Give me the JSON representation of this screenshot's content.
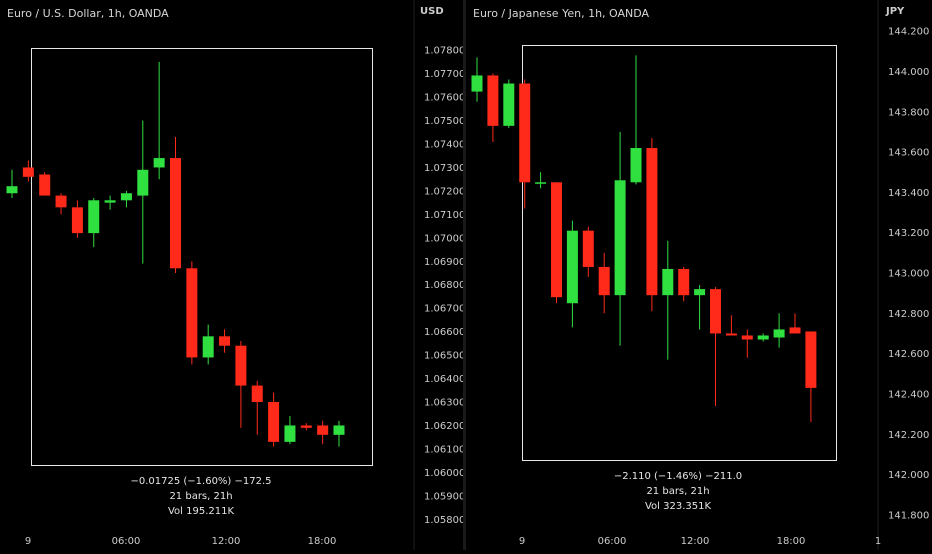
{
  "chart_data": [
    {
      "type": "candlestick",
      "title": "Euro / U.S. Dollar, 1h, OANDA",
      "currency": "USD",
      "ylim": [
        1.0575,
        1.0795
      ],
      "y_ticks": [
        "1.07800",
        "1.07700",
        "1.07600",
        "1.07500",
        "1.07400",
        "1.07300",
        "1.07200",
        "1.07100",
        "1.07000",
        "1.06900",
        "1.06800",
        "1.06700",
        "1.06600",
        "1.06500",
        "1.06400",
        "1.06300",
        "1.06200",
        "1.06100",
        "1.06000",
        "1.05900",
        "1.05800"
      ],
      "x_ticks": [
        "9",
        "06:00",
        "12:00",
        "18:00"
      ],
      "measure": {
        "change": "−0.01725 (−1.60%) −172.5",
        "bars": "21 bars, 21h",
        "volume": "Vol 195.211K"
      },
      "candles": [
        {
          "o": 1.0719,
          "h": 1.0729,
          "l": 1.0717,
          "c": 1.0722
        },
        {
          "o": 1.073,
          "h": 1.0733,
          "l": 1.0724,
          "c": 1.0726
        },
        {
          "o": 1.0727,
          "h": 1.0728,
          "l": 1.072,
          "c": 1.0718
        },
        {
          "o": 1.0718,
          "h": 1.0719,
          "l": 1.071,
          "c": 1.0713
        },
        {
          "o": 1.0713,
          "h": 1.0716,
          "l": 1.07,
          "c": 1.0702
        },
        {
          "o": 1.0702,
          "h": 1.0717,
          "l": 1.0696,
          "c": 1.0716
        },
        {
          "o": 1.0715,
          "h": 1.0718,
          "l": 1.0712,
          "c": 1.0716
        },
        {
          "o": 1.0716,
          "h": 1.072,
          "l": 1.0713,
          "c": 1.0719
        },
        {
          "o": 1.0718,
          "h": 1.075,
          "l": 1.0689,
          "c": 1.0729
        },
        {
          "o": 1.073,
          "h": 1.0775,
          "l": 1.0725,
          "c": 1.0734
        },
        {
          "o": 1.0734,
          "h": 1.0743,
          "l": 1.0685,
          "c": 1.0687
        },
        {
          "o": 1.0687,
          "h": 1.069,
          "l": 1.0646,
          "c": 1.0649
        },
        {
          "o": 1.0649,
          "h": 1.0663,
          "l": 1.0646,
          "c": 1.0658
        },
        {
          "o": 1.0658,
          "h": 1.0661,
          "l": 1.0651,
          "c": 1.0654
        },
        {
          "o": 1.0654,
          "h": 1.0656,
          "l": 1.0619,
          "c": 1.0637
        },
        {
          "o": 1.0637,
          "h": 1.0639,
          "l": 1.0616,
          "c": 1.063
        },
        {
          "o": 1.063,
          "h": 1.0634,
          "l": 1.0611,
          "c": 1.0613
        },
        {
          "o": 1.0613,
          "h": 1.0624,
          "l": 1.0612,
          "c": 1.062
        },
        {
          "o": 1.062,
          "h": 1.0621,
          "l": 1.0618,
          "c": 1.0619
        },
        {
          "o": 1.062,
          "h": 1.0622,
          "l": 1.0612,
          "c": 1.0616
        },
        {
          "o": 1.0616,
          "h": 1.0622,
          "l": 1.0611,
          "c": 1.062
        }
      ]
    },
    {
      "type": "candlestick",
      "title": "Euro / Japanese Yen, 1h, OANDA",
      "currency": "JPY",
      "ylim": [
        141.72,
        144.28
      ],
      "y_ticks": [
        "144.200",
        "144.000",
        "143.800",
        "143.600",
        "143.400",
        "143.200",
        "143.000",
        "142.800",
        "142.600",
        "142.400",
        "142.200",
        "142.000",
        "141.800"
      ],
      "x_ticks": [
        "9",
        "06:00",
        "12:00",
        "18:00",
        "1"
      ],
      "measure": {
        "change": "−2.110 (−1.46%) −211.0",
        "bars": "21 bars, 21h",
        "volume": "Vol 323.351K"
      },
      "candles": [
        {
          "o": 143.9,
          "h": 144.07,
          "l": 143.85,
          "c": 143.98
        },
        {
          "o": 143.98,
          "h": 143.99,
          "l": 143.65,
          "c": 143.73
        },
        {
          "o": 143.73,
          "h": 143.96,
          "l": 143.72,
          "c": 143.94
        },
        {
          "o": 143.94,
          "h": 143.96,
          "l": 143.32,
          "c": 143.45
        },
        {
          "o": 143.45,
          "h": 143.5,
          "l": 143.42,
          "c": 143.45
        },
        {
          "o": 143.45,
          "h": 143.45,
          "l": 142.85,
          "c": 142.88
        },
        {
          "o": 142.85,
          "h": 143.26,
          "l": 142.73,
          "c": 143.21
        },
        {
          "o": 143.21,
          "h": 143.23,
          "l": 142.98,
          "c": 143.03
        },
        {
          "o": 143.03,
          "h": 143.1,
          "l": 142.8,
          "c": 142.89
        },
        {
          "o": 142.89,
          "h": 143.7,
          "l": 142.64,
          "c": 143.46
        },
        {
          "o": 143.45,
          "h": 144.08,
          "l": 143.44,
          "c": 143.62
        },
        {
          "o": 143.62,
          "h": 143.67,
          "l": 142.81,
          "c": 142.89
        },
        {
          "o": 142.89,
          "h": 143.16,
          "l": 142.57,
          "c": 143.02
        },
        {
          "o": 143.02,
          "h": 143.03,
          "l": 142.86,
          "c": 142.89
        },
        {
          "o": 142.89,
          "h": 142.94,
          "l": 142.72,
          "c": 142.92
        },
        {
          "o": 142.92,
          "h": 142.93,
          "l": 142.34,
          "c": 142.7
        },
        {
          "o": 142.7,
          "h": 142.79,
          "l": 142.69,
          "c": 142.69
        },
        {
          "o": 142.69,
          "h": 142.72,
          "l": 142.58,
          "c": 142.67
        },
        {
          "o": 142.67,
          "h": 142.7,
          "l": 142.66,
          "c": 142.69
        },
        {
          "o": 142.68,
          "h": 142.8,
          "l": 142.63,
          "c": 142.72
        },
        {
          "o": 142.73,
          "h": 142.8,
          "l": 142.71,
          "c": 142.7
        },
        {
          "o": 142.71,
          "h": 142.71,
          "l": 142.26,
          "c": 142.43
        }
      ]
    }
  ],
  "colors": {
    "up": "#30e040",
    "down": "#ff2a1a",
    "axis_text": "#cccccc",
    "box": "#e6e6e6",
    "background": "#000000"
  }
}
